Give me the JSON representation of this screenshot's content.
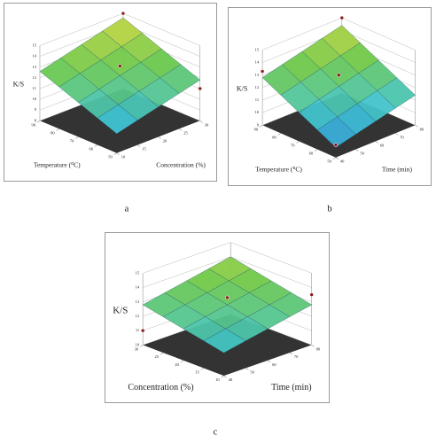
{
  "chart_data": [
    {
      "type": "surface",
      "label": "a",
      "x_label": "Temperature (⁰C)",
      "y_label": "Concentration (%)",
      "z_label": "K/S",
      "x": [
        50,
        60,
        70,
        80,
        90
      ],
      "y": [
        10,
        15,
        20,
        25,
        30
      ],
      "xlim": [
        50,
        90
      ],
      "ylim": [
        10,
        30
      ],
      "zlim": [
        8,
        15
      ],
      "xticks": [
        50,
        60,
        70,
        80,
        90
      ],
      "yticks": [
        10,
        15,
        20,
        25,
        30
      ],
      "zticks": [
        8,
        9,
        10,
        11,
        12,
        13,
        14,
        15
      ],
      "z": [
        [
          9.8,
          10.3,
          10.8,
          11.3,
          11.8
        ],
        [
          10.5,
          11.0,
          11.5,
          12.0,
          12.5
        ],
        [
          11.2,
          11.7,
          12.2,
          12.7,
          13.2
        ],
        [
          11.9,
          12.4,
          12.9,
          13.4,
          13.9
        ],
        [
          12.6,
          13.1,
          13.6,
          14.1,
          14.6
        ]
      ],
      "points": {
        "x": [
          90,
          70,
          50
        ],
        "y": [
          30,
          20,
          30
        ],
        "z": [
          15,
          13.1,
          11.0
        ]
      },
      "point_color": "#8b1a1a",
      "colormap": [
        "#2f7fe0",
        "#3fc4d6",
        "#6cc84a",
        "#e8dc3a"
      ]
    },
    {
      "type": "surface",
      "label": "b",
      "x_label": "Temperature (⁰C)",
      "y_label": "Time (min)",
      "z_label": "K/S",
      "x": [
        50,
        60,
        70,
        80,
        90
      ],
      "y": [
        40,
        50,
        60,
        70,
        80
      ],
      "xlim": [
        50,
        90
      ],
      "ylim": [
        40,
        80
      ],
      "zlim": [
        9,
        15
      ],
      "xticks": [
        50,
        60,
        70,
        80,
        90
      ],
      "yticks": [
        40,
        50,
        60,
        70,
        80
      ],
      "zticks": [
        9,
        10,
        11,
        12,
        13,
        14,
        15
      ],
      "z": [
        [
          9.8,
          10.2,
          10.6,
          11.0,
          11.4
        ],
        [
          10.55,
          10.95,
          11.35,
          11.75,
          12.15
        ],
        [
          11.3,
          11.7,
          12.1,
          12.5,
          12.9
        ],
        [
          12.05,
          12.45,
          12.85,
          13.25,
          13.65
        ],
        [
          12.8,
          13.2,
          13.6,
          14.0,
          14.4
        ]
      ],
      "points": {
        "x": [
          90,
          70,
          90,
          50
        ],
        "y": [
          80,
          60,
          40,
          40
        ],
        "z": [
          15,
          13.0,
          13.3,
          10.0
        ]
      },
      "point_color": "#8b1a1a",
      "colormap": [
        "#2f7fe0",
        "#3fc4d6",
        "#6cc84a",
        "#e8dc3a"
      ]
    },
    {
      "type": "surface",
      "label": "c",
      "x_label": "Concentration (%)",
      "y_label": "Time (min)",
      "z_label": "K/S",
      "x": [
        10,
        15,
        20,
        25,
        30
      ],
      "y": [
        40,
        50,
        60,
        70,
        80
      ],
      "xlim": [
        10,
        30
      ],
      "ylim": [
        40,
        80
      ],
      "zlim": [
        10,
        15
      ],
      "xticks": [
        10,
        15,
        20,
        25,
        30
      ],
      "yticks": [
        40,
        50,
        60,
        70,
        80
      ],
      "zticks": [
        10,
        11,
        12,
        13,
        14,
        15
      ],
      "z": [
        [
          11.6,
          11.9,
          12.2,
          12.5,
          12.8
        ],
        [
          11.9,
          12.2,
          12.5,
          12.8,
          13.1
        ],
        [
          12.2,
          12.5,
          12.8,
          13.1,
          13.4
        ],
        [
          12.5,
          12.8,
          13.1,
          13.4,
          13.7
        ],
        [
          12.8,
          13.1,
          13.4,
          13.7,
          14.0
        ]
      ],
      "points": {
        "x": [
          20,
          10,
          30
        ],
        "y": [
          60,
          80,
          40
        ],
        "z": [
          13.3,
          13.5,
          11.0
        ]
      },
      "point_color": "#8b1a1a",
      "colormap": [
        "#2f7fe0",
        "#3fc4d6",
        "#6cc84a",
        "#e8dc3a"
      ]
    }
  ]
}
